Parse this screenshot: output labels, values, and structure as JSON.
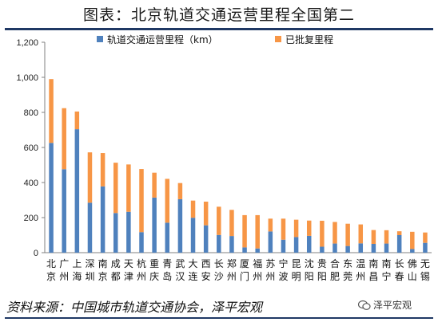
{
  "title": "图表：北京轨道交通运营里程全国第二",
  "source": "资料来源：中国城市轨道交通协会，泽平宏观",
  "watermark": "泽平宏观",
  "colors": {
    "operating": "#4f81bd",
    "approved": "#f79646",
    "axis": "#808080"
  },
  "chart_data": {
    "type": "bar",
    "stacked": true,
    "categories": [
      "北京",
      "广州",
      "上海",
      "深圳",
      "南京",
      "成都",
      "天津",
      "杭州",
      "重庆",
      "青岛",
      "武汉",
      "大连",
      "西安",
      "长沙",
      "郑州",
      "厦门",
      "福州",
      "苏州",
      "宁波",
      "昆明",
      "沈阳",
      "贵阳",
      "合肥",
      "东莞",
      "温州",
      "南昌",
      "南宁",
      "长春",
      "佛山",
      "无锡"
    ],
    "series": [
      {
        "name": "轨道交通运营里程（km）",
        "values": [
          626,
          476,
          704,
          285,
          378,
          226,
          233,
          117,
          314,
          171,
          305,
          199,
          156,
          101,
          95,
          30,
          24,
          121,
          74,
          89,
          96,
          34,
          52,
          38,
          53,
          50,
          52,
          100,
          21,
          56
        ]
      },
      {
        "name": "已批复里程",
        "values": [
          364,
          348,
          101,
          287,
          190,
          287,
          270,
          360,
          142,
          250,
          92,
          98,
          135,
          161,
          149,
          184,
          190,
          73,
          120,
          99,
          87,
          148,
          123,
          127,
          108,
          79,
          76,
          22,
          98,
          59
        ]
      }
    ],
    "ylim": [
      0,
      1200
    ],
    "yticks": [
      0,
      200,
      400,
      600,
      800,
      1000,
      1200
    ],
    "ytick_labels": [
      "0",
      "200",
      "400",
      "600",
      "800",
      "1,000",
      "1,200"
    ],
    "legend_position": "top"
  }
}
